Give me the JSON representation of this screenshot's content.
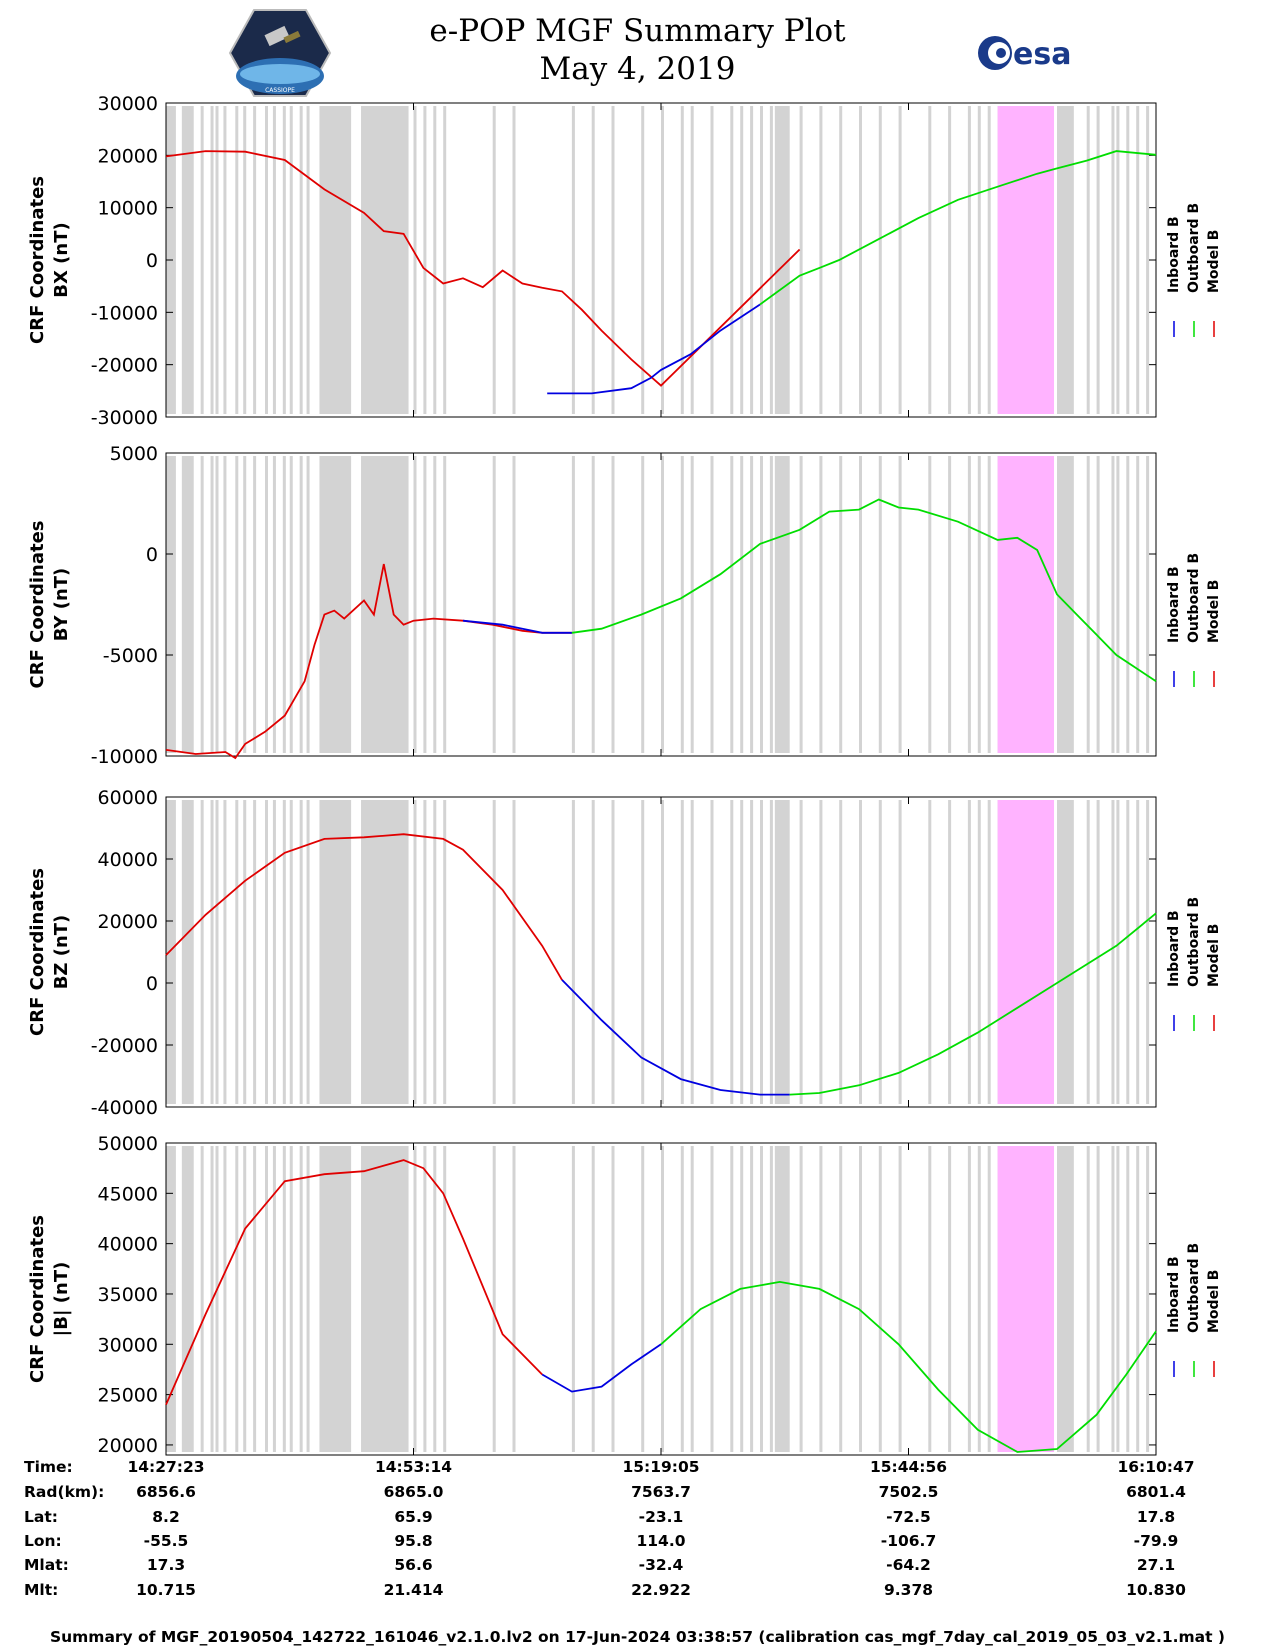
{
  "header": {
    "title_line1": "e-POP MGF Summary Plot",
    "title_line2": "May 4, 2019",
    "logo_left": "CASSIOPE",
    "logo_right": "esa"
  },
  "chart_data": [
    {
      "type": "line",
      "ylabel_line1": "CRF Coordinates",
      "ylabel_line2": "BX (nT)",
      "ylim": [
        -30000,
        30000
      ],
      "yticks": [
        30000,
        20000,
        10000,
        0,
        -10000,
        -20000,
        -30000
      ],
      "legend": [
        "Inboard B",
        "Outboard B",
        "Model B"
      ],
      "series": [
        {
          "name": "Model B",
          "color": "#e00000",
          "x": [
            0,
            0.04,
            0.08,
            0.12,
            0.16,
            0.2,
            0.22,
            0.24,
            0.26,
            0.28,
            0.3,
            0.32,
            0.34,
            0.36,
            0.38,
            0.4,
            0.42,
            0.44,
            0.47,
            0.5,
            0.64
          ],
          "y": [
            19800,
            20800,
            20700,
            19100,
            13500,
            9000,
            5500,
            5000,
            -1500,
            -4500,
            -3500,
            -5200,
            -2000,
            -4500,
            -5300,
            -6000,
            -9500,
            -13500,
            -19000,
            -24000,
            2000
          ]
        },
        {
          "name": "Inboard B",
          "color": "#0000e0",
          "x": [
            0.385,
            0.43,
            0.47,
            0.49,
            0.5,
            0.53,
            0.56,
            0.6,
            0.6
          ],
          "y": [
            -25500,
            -25500,
            -24500,
            -22500,
            -21000,
            -18000,
            -13500,
            -8500,
            -8500
          ]
        },
        {
          "name": "Outboard B",
          "color": "#00dd00",
          "x": [
            0.6,
            0.64,
            0.66,
            0.68,
            0.72,
            0.76,
            0.8,
            0.84,
            0.88,
            0.9,
            0.93,
            0.96,
            1.0
          ],
          "y": [
            -8500,
            -3000,
            -1500,
            0,
            4000,
            8000,
            11500,
            14000,
            16500,
            17500,
            19000,
            20800,
            20100
          ]
        }
      ]
    },
    {
      "type": "line",
      "ylabel_line1": "CRF Coordinates",
      "ylabel_line2": "BY (nT)",
      "ylim": [
        -10000,
        5000
      ],
      "yticks": [
        5000,
        0,
        -5000,
        -10000
      ],
      "legend": [
        "Inboard B",
        "Outboard B",
        "Model B"
      ],
      "series": [
        {
          "name": "Model B",
          "color": "#e00000",
          "x": [
            0,
            0.03,
            0.06,
            0.07,
            0.08,
            0.1,
            0.12,
            0.14,
            0.15,
            0.16,
            0.17,
            0.18,
            0.2,
            0.21,
            0.22,
            0.23,
            0.24,
            0.25,
            0.27,
            0.3,
            0.33,
            0.36,
            0.38,
            0.41
          ],
          "y": [
            -9700,
            -9900,
            -9800,
            -10100,
            -9400,
            -8800,
            -8000,
            -6300,
            -4500,
            -3000,
            -2800,
            -3200,
            -2300,
            -3000,
            -500,
            -3000,
            -3500,
            -3300,
            -3200,
            -3300,
            -3500,
            -3800,
            -3900,
            -3900
          ]
        },
        {
          "name": "Inboard B",
          "color": "#0000e0",
          "x": [
            0.3,
            0.34,
            0.36,
            0.38,
            0.41
          ],
          "y": [
            -3300,
            -3500,
            -3700,
            -3900,
            -3900
          ]
        },
        {
          "name": "Outboard B",
          "color": "#00dd00",
          "x": [
            0.41,
            0.44,
            0.48,
            0.52,
            0.56,
            0.6,
            0.64,
            0.67,
            0.7,
            0.72,
            0.74,
            0.76,
            0.8,
            0.84,
            0.86,
            0.88,
            0.9,
            0.92,
            0.94,
            0.96,
            1.0
          ],
          "y": [
            -3900,
            -3700,
            -3000,
            -2200,
            -1000,
            500,
            1200,
            2100,
            2200,
            2700,
            2300,
            2200,
            1600,
            700,
            800,
            200,
            -2000,
            -3000,
            -4000,
            -5000,
            -6300
          ]
        }
      ]
    },
    {
      "type": "line",
      "ylabel_line1": "CRF Coordinates",
      "ylabel_line2": "BZ (nT)",
      "ylim": [
        -40000,
        60000
      ],
      "yticks": [
        60000,
        40000,
        20000,
        0,
        -20000,
        -40000
      ],
      "legend": [
        "Inboard B",
        "Outboard B",
        "Model B"
      ],
      "series": [
        {
          "name": "Model B",
          "color": "#e00000",
          "x": [
            0,
            0.04,
            0.08,
            0.12,
            0.16,
            0.2,
            0.24,
            0.28,
            0.3,
            0.34,
            0.38,
            0.4
          ],
          "y": [
            9000,
            22000,
            33000,
            42000,
            46500,
            47000,
            48000,
            46500,
            43000,
            30000,
            12000,
            1000
          ]
        },
        {
          "name": "Inboard B",
          "color": "#0000e0",
          "x": [
            0.4,
            0.44,
            0.48,
            0.52,
            0.56,
            0.6,
            0.63
          ],
          "y": [
            1000,
            -12000,
            -24000,
            -31000,
            -34500,
            -36000,
            -36000
          ]
        },
        {
          "name": "Outboard B",
          "color": "#00dd00",
          "x": [
            0.63,
            0.66,
            0.7,
            0.74,
            0.78,
            0.82,
            0.86,
            0.9,
            0.96,
            1.0
          ],
          "y": [
            -36000,
            -35500,
            -33000,
            -29000,
            -23000,
            -16000,
            -8000,
            0,
            12000,
            22500
          ]
        }
      ]
    },
    {
      "type": "line",
      "ylabel_line1": "CRF Coordinates",
      "ylabel_line2": "|B| (nT)",
      "ylim": [
        19000,
        50000
      ],
      "yticks": [
        50000,
        45000,
        40000,
        35000,
        30000,
        25000,
        20000
      ],
      "legend": [
        "Inboard B",
        "Outboard B",
        "Model B"
      ],
      "series": [
        {
          "name": "Model B",
          "color": "#e00000",
          "x": [
            0,
            0.04,
            0.08,
            0.12,
            0.16,
            0.2,
            0.24,
            0.26,
            0.28,
            0.3,
            0.34,
            0.38
          ],
          "y": [
            24000,
            33000,
            41500,
            46200,
            46900,
            47200,
            48300,
            47500,
            45000,
            40500,
            31000,
            27000
          ]
        },
        {
          "name": "Inboard B",
          "color": "#0000e0",
          "x": [
            0.38,
            0.41,
            0.44,
            0.47,
            0.5
          ],
          "y": [
            27000,
            25300,
            25800,
            28000,
            30000
          ]
        },
        {
          "name": "Outboard B",
          "color": "#00dd00",
          "x": [
            0.5,
            0.54,
            0.58,
            0.62,
            0.66,
            0.7,
            0.74,
            0.78,
            0.82,
            0.86,
            0.9,
            0.94,
            0.97,
            1.0
          ],
          "y": [
            30000,
            33500,
            35500,
            36200,
            35500,
            33500,
            30000,
            25500,
            21500,
            19300,
            19600,
            23000,
            27000,
            31300
          ]
        }
      ]
    }
  ],
  "info": {
    "labels": [
      "Time:",
      "Rad(km):",
      "Lat:",
      "Lon:",
      "Mlat:",
      "Mlt:"
    ],
    "columns": [
      [
        "14:27:23",
        "6856.6",
        "8.2",
        "-55.5",
        "17.3",
        "10.715"
      ],
      [
        "14:53:14",
        "6865.0",
        "65.9",
        "95.8",
        "56.6",
        "21.414"
      ],
      [
        "15:19:05",
        "7563.7",
        "-23.1",
        "114.0",
        "-32.4",
        "22.922"
      ],
      [
        "15:44:56",
        "7502.5",
        "-72.5",
        "-106.7",
        "-64.2",
        "9.378"
      ],
      [
        "16:10:47",
        "6801.4",
        "17.8",
        "-79.9",
        "27.1",
        "10.830"
      ]
    ]
  },
  "footer": {
    "text": "Summary of MGF_20190504_142722_161046_v2.1.0.lv2 on 17-Jun-2024 03:38:57 (calibration cas_mgf_7day_cal_2019_05_03_v2.1.mat )"
  },
  "shading": {
    "gray_color": "#d3d3d3",
    "magenta_color": "#ffb3ff",
    "gray_blocks": [
      [
        0.0,
        0.01
      ],
      [
        0.016,
        0.028
      ],
      [
        0.155,
        0.187
      ],
      [
        0.197,
        0.245
      ],
      [
        0.615,
        0.63
      ],
      [
        0.84,
        0.855
      ],
      [
        0.91,
        0.915
      ],
      [
        0.9,
        0.917
      ]
    ],
    "magenta_blocks": [
      [
        0.84,
        0.897
      ]
    ],
    "gray_lines": [
      0.035,
      0.045,
      0.05,
      0.058,
      0.07,
      0.078,
      0.088,
      0.1,
      0.108,
      0.118,
      0.125,
      0.135,
      0.142,
      0.18,
      0.25,
      0.26,
      0.27,
      0.28,
      0.33,
      0.35,
      0.41,
      0.43,
      0.45,
      0.48,
      0.5,
      0.52,
      0.53,
      0.55,
      0.57,
      0.58,
      0.59,
      0.6,
      0.61,
      0.64,
      0.66,
      0.68,
      0.7,
      0.72,
      0.74,
      0.77,
      0.79,
      0.81,
      0.82,
      0.83,
      0.93,
      0.94,
      0.955,
      0.96,
      0.97,
      0.98,
      0.99
    ]
  }
}
